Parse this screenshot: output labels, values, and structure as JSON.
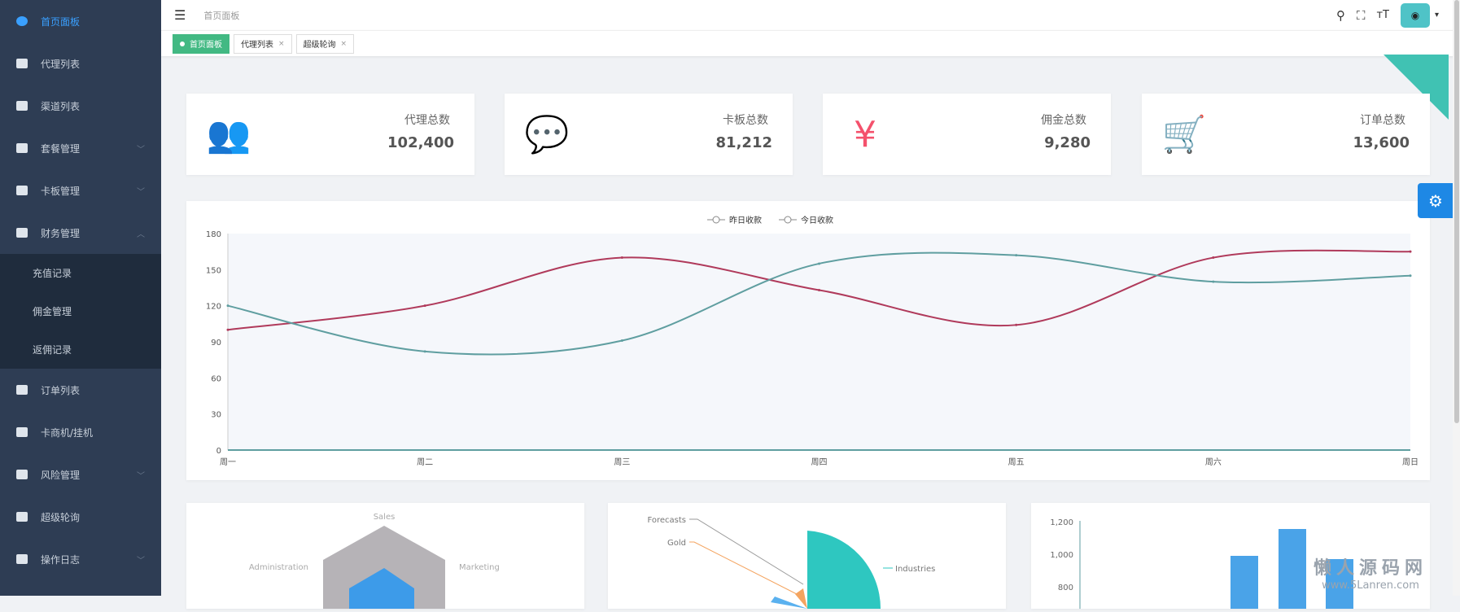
{
  "sidebar": {
    "items": [
      {
        "label": "首页面板",
        "active": true
      },
      {
        "label": "代理列表"
      },
      {
        "label": "渠道列表"
      },
      {
        "label": "套餐管理",
        "chevron": "down"
      },
      {
        "label": "卡板管理",
        "chevron": "down"
      },
      {
        "label": "财务管理",
        "chevron": "up"
      }
    ],
    "sub_items": [
      {
        "label": "充值记录"
      },
      {
        "label": "佣金管理"
      },
      {
        "label": "返佣记录"
      }
    ],
    "items_after": [
      {
        "label": "订单列表"
      },
      {
        "label": "卡商机/挂机"
      },
      {
        "label": "风险管理",
        "chevron": "down"
      },
      {
        "label": "超级轮询"
      },
      {
        "label": "操作日志",
        "chevron": "down"
      }
    ]
  },
  "header": {
    "breadcrumb": "首页面板",
    "menu_icon": "☰",
    "icons": [
      "search-icon",
      "fullscreen-icon",
      "font-size-icon"
    ],
    "search": "⚲",
    "fullscreen": "⛶",
    "fontsize": "тT",
    "avatar": "◉",
    "caret": "▾"
  },
  "tabs": [
    {
      "label": "首页面板",
      "active": true
    },
    {
      "label": "代理列表",
      "close": "×"
    },
    {
      "label": "超级轮询",
      "close": "×"
    }
  ],
  "stats": [
    {
      "label": "代理总数",
      "value": "102,400",
      "icon": "users-icon",
      "color": "#40c2b3"
    },
    {
      "label": "卡板总数",
      "value": "81,212",
      "icon": "message-icon",
      "color": "#36a3f7"
    },
    {
      "label": "佣金总数",
      "value": "9,280",
      "icon": "yen-icon",
      "color": "#f4516c"
    },
    {
      "label": "订单总数",
      "value": "13,600",
      "icon": "cart-icon",
      "color": "#34bfa3"
    }
  ],
  "chart_data": [
    {
      "type": "line",
      "smooth": true,
      "categories": [
        "周一",
        "周二",
        "周三",
        "周四",
        "周五",
        "周六",
        "周日"
      ],
      "ylim": [
        0,
        180
      ],
      "yticks": [
        0,
        30,
        60,
        90,
        120,
        150,
        180
      ],
      "legend_position": "top-center",
      "series": [
        {
          "name": "昨日收款",
          "values": [
            100,
            120,
            160,
            133,
            104,
            160,
            165
          ],
          "color": "#b03a5b"
        },
        {
          "name": "今日收款",
          "values": [
            120,
            82,
            91,
            155,
            162,
            140,
            145
          ],
          "color": "#5f9ea0"
        }
      ]
    },
    {
      "type": "radar",
      "indicators": [
        "Sales",
        "Administration",
        "Marketing"
      ]
    },
    {
      "type": "pie",
      "labels": [
        "Forecasts",
        "Gold",
        "Industries"
      ]
    },
    {
      "type": "bar",
      "yticks": [
        "1,200",
        "1,000",
        "800"
      ]
    }
  ],
  "watermark": {
    "title": "懒人源码网",
    "url": "www.5Lanren.com"
  },
  "settings_icon": "⚙"
}
